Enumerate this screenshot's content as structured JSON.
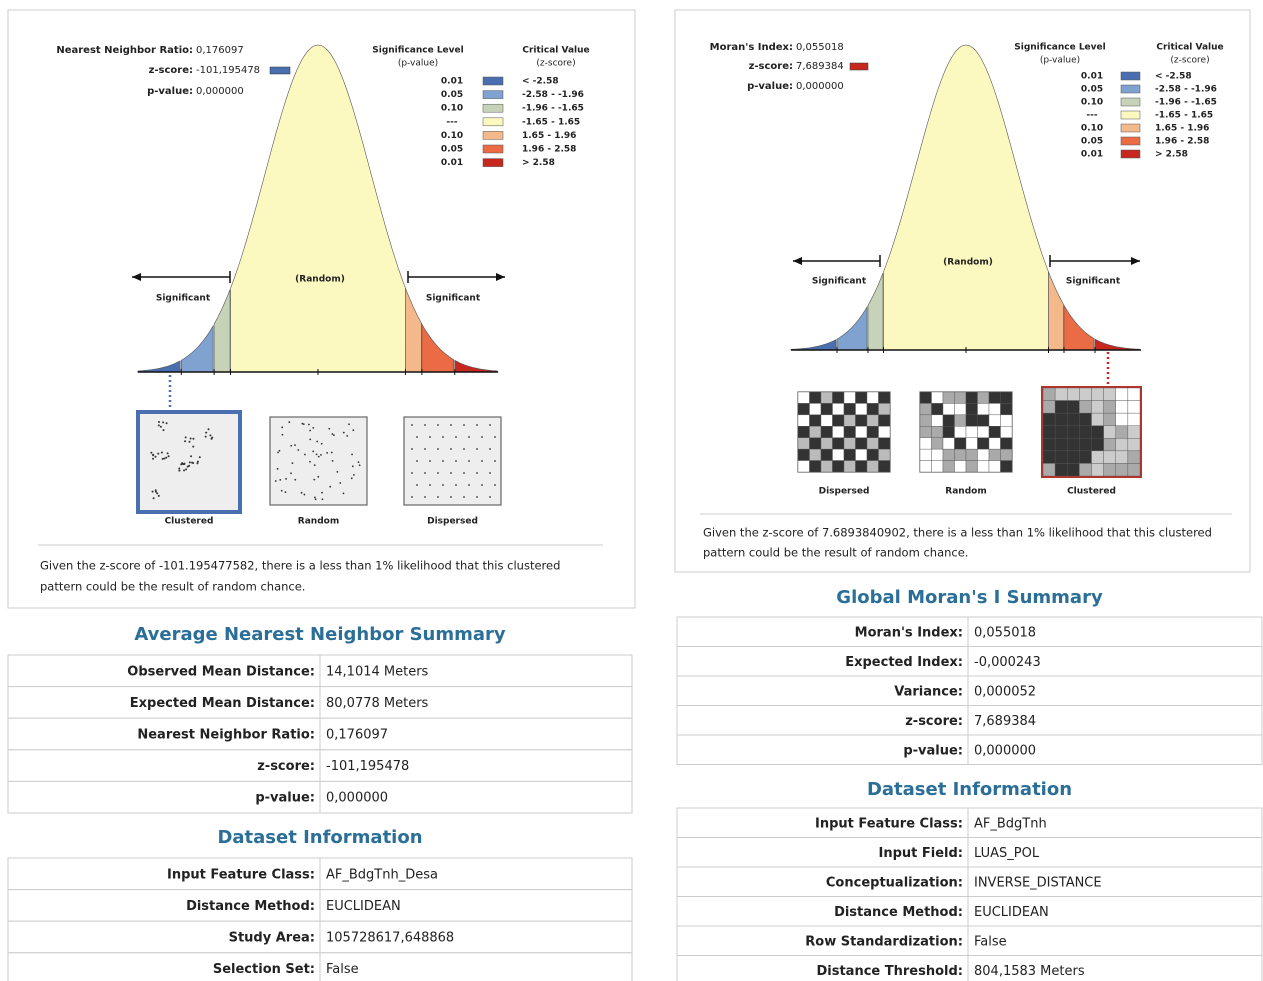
{
  "left": {
    "graphic": {
      "stats": [
        [
          "Nearest Neighbor Ratio:",
          "0,176097"
        ],
        [
          "z-score:",
          "-101,195478"
        ],
        [
          "p-value:",
          "0,000000"
        ]
      ],
      "legend": {
        "sig_header": [
          "Significance Level",
          "(p-value)"
        ],
        "crit_header": [
          "Critical Value",
          "(z-score)"
        ],
        "rows": [
          [
            "0.01",
            "< -2.58"
          ],
          [
            "0.05",
            "-2.58 - -1.96"
          ],
          [
            "0.10",
            "-1.96 - -1.65"
          ],
          [
            "---",
            "-1.65 - 1.65"
          ],
          [
            "0.10",
            "1.65 - 1.96"
          ],
          [
            "0.05",
            "1.96 - 2.58"
          ],
          [
            "0.01",
            "> 2.58"
          ]
        ]
      },
      "random_label": "(Random)",
      "significant": [
        "Significant",
        "Significant"
      ],
      "patterns": [
        "Clustered",
        "Random",
        "Dispersed"
      ],
      "caption": [
        "Given the z-score of -101.195477582, there is a less than 1% likelihood that this clustered",
        "pattern could be the result of random chance."
      ]
    },
    "summary": {
      "title": "Average Nearest Neighbor Summary",
      "rows": [
        [
          "Observed Mean Distance:",
          "14,1014 Meters"
        ],
        [
          "Expected Mean Distance:",
          "80,0778 Meters"
        ],
        [
          "Nearest Neighbor Ratio:",
          "0,176097"
        ],
        [
          "z-score:",
          "-101,195478"
        ],
        [
          "p-value:",
          "0,000000"
        ]
      ]
    },
    "dataset": {
      "title": "Dataset Information",
      "rows": [
        [
          "Input Feature Class:",
          "AF_BdgTnh_Desa"
        ],
        [
          "Distance Method:",
          "EUCLIDEAN"
        ],
        [
          "Study Area:",
          "105728617,648868"
        ],
        [
          "Selection Set:",
          "False"
        ]
      ]
    }
  },
  "right": {
    "graphic": {
      "stats": [
        [
          "Moran's Index:",
          "0,055018"
        ],
        [
          "z-score:",
          "7,689384"
        ],
        [
          "p-value:",
          "0,000000"
        ]
      ],
      "legend": {
        "sig_header": [
          "Significance Level",
          "(p-value)"
        ],
        "crit_header": [
          "Critical Value",
          "(z-score)"
        ],
        "rows": [
          [
            "0.01",
            "< -2.58"
          ],
          [
            "0.05",
            "-2.58 - -1.96"
          ],
          [
            "0.10",
            "-1.96 - -1.65"
          ],
          [
            "---",
            "-1.65 - 1.65"
          ],
          [
            "0.10",
            "1.65 - 1.96"
          ],
          [
            "0.05",
            "1.96 - 2.58"
          ],
          [
            "0.01",
            "> 2.58"
          ]
        ]
      },
      "random_label": "(Random)",
      "significant": [
        "Significant",
        "Significant"
      ],
      "patterns": [
        "Dispersed",
        "Random",
        "Clustered"
      ],
      "caption": [
        "Given the z-score of 7.6893840902, there is a less than 1% likelihood that this clustered",
        "pattern could be the result of random chance."
      ]
    },
    "summary": {
      "title": "Global Moran's I Summary",
      "rows": [
        [
          "Moran's Index:",
          "0,055018"
        ],
        [
          "Expected Index:",
          "-0,000243"
        ],
        [
          "Variance:",
          "0,000052"
        ],
        [
          "z-score:",
          "7,689384"
        ],
        [
          "p-value:",
          "0,000000"
        ]
      ]
    },
    "dataset": {
      "title": "Dataset Information",
      "rows": [
        [
          "Input Feature Class:",
          "AF_BdgTnh"
        ],
        [
          "Input Field:",
          "LUAS_POL"
        ],
        [
          "Conceptualization:",
          "INVERSE_DISTANCE"
        ],
        [
          "Distance Method:",
          "EUCLIDEAN"
        ],
        [
          "Row Standardization:",
          "False"
        ],
        [
          "Distance Threshold:",
          "804,1583 Meters"
        ]
      ]
    }
  }
}
